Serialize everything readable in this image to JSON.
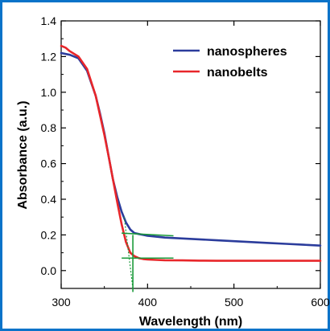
{
  "chart_data": {
    "type": "line",
    "title": "",
    "xlabel": "Wavelength (nm)",
    "ylabel": "Absorbance (a.u.)",
    "xlim": [
      300,
      600
    ],
    "ylim": [
      -0.1,
      1.4
    ],
    "xticks": [
      300,
      400,
      500,
      600
    ],
    "xtick_labels": [
      "300",
      "400",
      "500",
      "600"
    ],
    "yticks": [
      0.0,
      0.2,
      0.4,
      0.6,
      0.8,
      1.0,
      1.2,
      1.4
    ],
    "ytick_labels": [
      "0.0",
      "0.2",
      "0.4",
      "0.6",
      "0.8",
      "1.0",
      "1.2",
      "1.4"
    ],
    "legend_position": "top-right",
    "grid": false,
    "series": [
      {
        "name": "nanospheres",
        "color": "#2b3c9c",
        "x": [
          300,
          310,
          320,
          330,
          340,
          345,
          350,
          355,
          360,
          365,
          370,
          375,
          380,
          385,
          390,
          395,
          400,
          410,
          420,
          440,
          460,
          480,
          500,
          520,
          540,
          560,
          580,
          600
        ],
        "y": [
          1.22,
          1.21,
          1.19,
          1.12,
          0.98,
          0.88,
          0.77,
          0.64,
          0.51,
          0.41,
          0.33,
          0.27,
          0.23,
          0.21,
          0.205,
          0.2,
          0.195,
          0.19,
          0.185,
          0.18,
          0.175,
          0.17,
          0.165,
          0.16,
          0.155,
          0.15,
          0.145,
          0.14
        ]
      },
      {
        "name": "nanobelts",
        "color": "#e8262a",
        "x": [
          300,
          305,
          310,
          320,
          330,
          340,
          345,
          350,
          355,
          360,
          365,
          370,
          375,
          380,
          385,
          390,
          395,
          400,
          410,
          420,
          440,
          460,
          480,
          500,
          520,
          540,
          560,
          580,
          600
        ],
        "y": [
          1.26,
          1.25,
          1.23,
          1.2,
          1.13,
          0.98,
          0.87,
          0.76,
          0.64,
          0.51,
          0.38,
          0.26,
          0.16,
          0.1,
          0.08,
          0.07,
          0.065,
          0.062,
          0.06,
          0.058,
          0.057,
          0.056,
          0.055,
          0.055,
          0.055,
          0.055,
          0.055,
          0.055,
          0.055
        ]
      }
    ],
    "guide_lines_color": "#1a9a3a",
    "guide_lines": [
      {
        "x1": 370,
        "y1": 0.21,
        "x2": 430,
        "y2": 0.195
      },
      {
        "x1": 370,
        "y1": 0.07,
        "x2": 430,
        "y2": 0.07
      },
      {
        "x1": 383,
        "y1": -0.12,
        "x2": 383,
        "y2": 0.2
      },
      {
        "x1": 383,
        "y1": -0.1,
        "x2": 373,
        "y2": 0.3
      }
    ]
  }
}
